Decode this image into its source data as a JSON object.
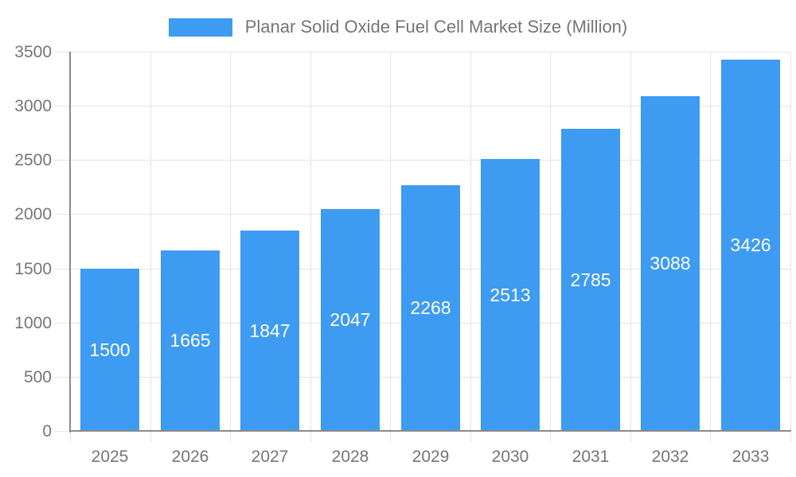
{
  "legend": {
    "label": "Planar Solid Oxide Fuel Cell Market Size (Million)"
  },
  "colors": {
    "bar": "#3D9BF2",
    "bar_label": "#FFFFFF",
    "axis_text": "#757575",
    "grid_line": "#E3E3E3",
    "axis_line": "#8B8B8B",
    "background": "#FFFFFF"
  },
  "chart_data": {
    "type": "bar",
    "title": "Planar Solid Oxide Fuel Cell Market Size (Million)",
    "legend_entries": [
      "Planar Solid Oxide Fuel Cell Market Size (Million)"
    ],
    "legend_position": "top",
    "categories": [
      "2025",
      "2026",
      "2027",
      "2028",
      "2029",
      "2030",
      "2031",
      "2032",
      "2033"
    ],
    "values": [
      1500,
      1665,
      1847,
      2047,
      2268,
      2513,
      2785,
      3088,
      3426
    ],
    "xlabel": "",
    "ylabel": "",
    "ylim": [
      0,
      3500
    ],
    "ytick_step": 500,
    "yticks": [
      0,
      500,
      1000,
      1500,
      2000,
      2500,
      3000,
      3500
    ],
    "grid": true,
    "value_labels_position": "inside-center"
  }
}
